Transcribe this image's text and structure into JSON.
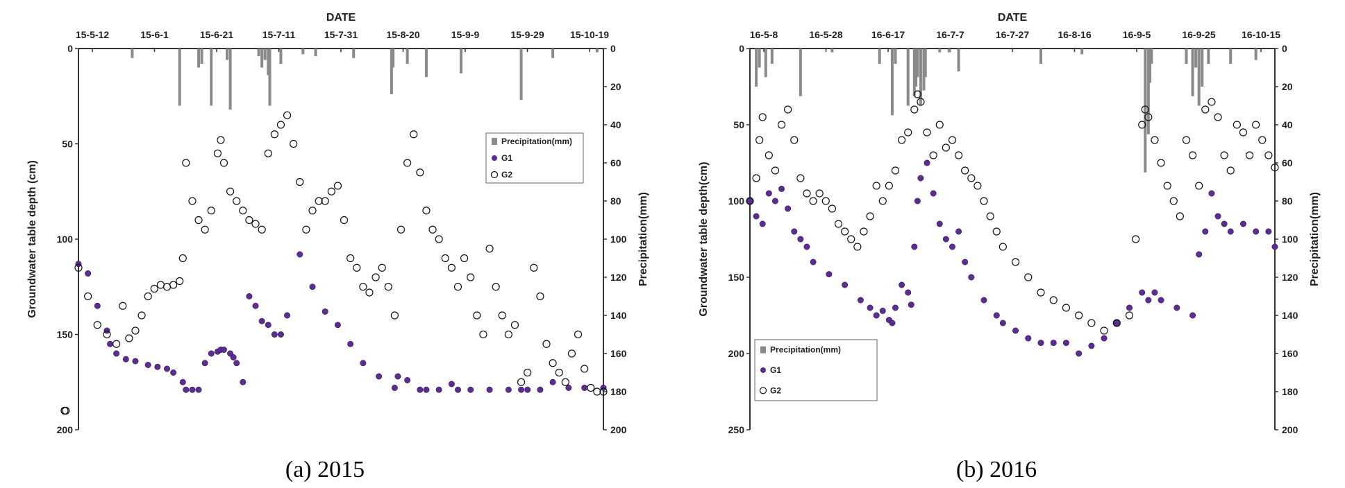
{
  "chart_data": [
    {
      "type": "scatter",
      "caption": "(a) 2015",
      "top_axis_label": "DATE",
      "x_tick_labels": [
        "15-5-12",
        "15-6-1",
        "15-6-21",
        "15-7-11",
        "15-7-31",
        "15-8-20",
        "15-9-9",
        "15-9-29",
        "15-10-19"
      ],
      "ylabel": "Groundwater table depth (cm)",
      "y2label": "Precipitation(mm)",
      "ylim": [
        0,
        200
      ],
      "y_ticks": [
        "0",
        "50",
        "100",
        "150",
        "200"
      ],
      "y2lim": [
        0,
        200
      ],
      "y2_ticks": [
        "0",
        "20",
        "40",
        "60",
        "80",
        "100",
        "120",
        "140",
        "160",
        "180",
        "200"
      ],
      "x_range_days": [
        0,
        166
      ],
      "legend_position": "right-center",
      "legend": [
        "Precipitation(mm)",
        "G1",
        "G2"
      ],
      "colors": {
        "precipitation": "#8a8a8a",
        "G1": "#5b2d8e",
        "G2": "#111111"
      },
      "series": [
        {
          "name": "Precipitation(mm)",
          "kind": "bar",
          "x": [
            17,
            32,
            38,
            39,
            42,
            47,
            48,
            57,
            58,
            59,
            60,
            60.5,
            64,
            71,
            75,
            87,
            99,
            99.5,
            104,
            110,
            121,
            140,
            150,
            164
          ],
          "y": [
            5,
            30,
            10,
            8,
            30,
            6,
            32,
            4,
            10,
            6,
            14,
            30,
            8,
            3,
            4,
            5,
            24,
            10,
            8,
            15,
            13,
            27,
            5,
            2
          ]
        },
        {
          "name": "G1",
          "kind": "scatter",
          "x": [
            0,
            3,
            6,
            9,
            10,
            12,
            15,
            18,
            22,
            25,
            28,
            30,
            33,
            34,
            36,
            38,
            40,
            42,
            44,
            45,
            46,
            48,
            49,
            50,
            52,
            54,
            56,
            58,
            60,
            62,
            64,
            66,
            70,
            74,
            78,
            82,
            86,
            90,
            95,
            100,
            101,
            104,
            108,
            110,
            114,
            118,
            120,
            124,
            130,
            136,
            140,
            142,
            146,
            150,
            155,
            160,
            166
          ],
          "y": [
            113,
            118,
            135,
            148,
            155,
            160,
            163,
            164,
            166,
            167,
            168,
            170,
            175,
            179,
            179,
            179,
            165,
            160,
            159,
            158,
            158,
            160,
            162,
            165,
            175,
            130,
            135,
            143,
            145,
            150,
            150,
            140,
            108,
            125,
            138,
            145,
            155,
            165,
            172,
            178,
            172,
            174,
            179,
            179,
            179,
            176,
            179,
            179,
            179,
            179,
            179,
            179,
            179,
            175,
            178,
            178,
            178
          ]
        },
        {
          "name": "G2",
          "kind": "scatter",
          "x": [
            -8,
            -6,
            -4,
            0,
            3,
            6,
            9,
            12,
            14,
            16,
            18,
            20,
            22,
            24,
            26,
            28,
            30,
            32,
            33,
            34,
            36,
            38,
            40,
            42,
            44,
            45,
            46,
            48,
            50,
            52,
            54,
            56,
            58,
            60,
            62,
            64,
            66,
            68,
            70,
            72,
            74,
            76,
            78,
            80,
            82,
            84,
            86,
            88,
            90,
            92,
            94,
            96,
            98,
            100,
            102,
            104,
            106,
            108,
            110,
            112,
            114,
            116,
            118,
            120,
            122,
            124,
            126,
            128,
            130,
            132,
            134,
            136,
            138,
            140,
            142,
            144,
            146,
            148,
            150,
            152,
            154,
            156,
            158,
            160,
            162,
            164,
            166
          ],
          "y": [
            190,
            190,
            190,
            115,
            130,
            145,
            150,
            155,
            135,
            152,
            148,
            140,
            130,
            126,
            124,
            125,
            124,
            122,
            110,
            60,
            80,
            90,
            95,
            85,
            55,
            48,
            60,
            75,
            80,
            85,
            90,
            92,
            95,
            55,
            45,
            40,
            35,
            50,
            70,
            95,
            85,
            80,
            80,
            75,
            72,
            90,
            110,
            115,
            125,
            128,
            120,
            115,
            125,
            140,
            95,
            60,
            45,
            65,
            85,
            95,
            100,
            110,
            115,
            125,
            110,
            120,
            140,
            150,
            105,
            125,
            140,
            150,
            145,
            175,
            170,
            115,
            130,
            155,
            165,
            170,
            175,
            160,
            150,
            168,
            178,
            180,
            180
          ]
        }
      ]
    },
    {
      "type": "scatter",
      "caption": "(b) 2016",
      "top_axis_label": "DATE",
      "x_tick_labels": [
        "16-5-8",
        "16-5-28",
        "16-6-17",
        "16-7-7",
        "16-7-27",
        "16-8-16",
        "16-9-5",
        "16-9-25",
        "16-10-15"
      ],
      "ylabel": "Groundwater table depth(cm)",
      "y2label": "Precipitation(mm)",
      "ylim": [
        0,
        250
      ],
      "y_ticks": [
        "0",
        "50",
        "100",
        "150",
        "200",
        "250"
      ],
      "y2lim": [
        0,
        200
      ],
      "y2_ticks": [
        "0",
        "20",
        "40",
        "60",
        "80",
        "100",
        "120",
        "140",
        "160",
        "180",
        "200"
      ],
      "x_range_days": [
        0,
        166
      ],
      "legend_position": "bottom-left",
      "legend": [
        "Precipitation(mm)",
        "G1",
        "G2"
      ],
      "colors": {
        "precipitation": "#8a8a8a",
        "G1": "#5b2d8e",
        "G2": "#111111"
      },
      "series": [
        {
          "name": "Precipitation(mm)",
          "kind": "bar",
          "x": [
            2,
            3,
            5,
            7,
            16,
            26,
            41,
            45,
            46,
            50,
            52,
            52.5,
            53,
            54,
            55,
            55.5,
            60,
            63,
            66,
            92,
            105,
            125,
            126,
            126.5,
            127,
            138,
            140,
            141,
            142,
            143,
            145,
            152,
            160
          ],
          "y": [
            20,
            10,
            15,
            8,
            25,
            2,
            8,
            35,
            8,
            30,
            25,
            20,
            15,
            30,
            22,
            15,
            2,
            2,
            12,
            8,
            3,
            65,
            45,
            18,
            8,
            8,
            25,
            10,
            30,
            20,
            8,
            8,
            6
          ]
        },
        {
          "name": "G1",
          "kind": "scatter",
          "x": [
            0,
            2,
            4,
            6,
            8,
            10,
            12,
            14,
            16,
            18,
            20,
            25,
            30,
            35,
            38,
            40,
            42,
            44,
            45,
            46,
            48,
            50,
            51,
            52,
            53,
            54,
            56,
            58,
            60,
            62,
            64,
            66,
            68,
            70,
            74,
            78,
            80,
            84,
            88,
            92,
            96,
            100,
            104,
            108,
            112,
            116,
            120,
            124,
            126,
            128,
            130,
            135,
            140,
            142,
            144,
            146,
            148,
            150,
            152,
            156,
            160,
            164,
            166
          ],
          "y": [
            100,
            110,
            115,
            95,
            100,
            92,
            105,
            120,
            125,
            130,
            140,
            148,
            155,
            165,
            170,
            175,
            172,
            178,
            180,
            170,
            155,
            160,
            168,
            130,
            100,
            85,
            75,
            95,
            115,
            125,
            130,
            120,
            140,
            150,
            165,
            175,
            180,
            185,
            190,
            193,
            193,
            193,
            200,
            195,
            190,
            180,
            170,
            160,
            165,
            160,
            165,
            170,
            175,
            135,
            120,
            95,
            110,
            115,
            120,
            115,
            120,
            120,
            130
          ]
        },
        {
          "name": "G2",
          "kind": "scatter",
          "x": [
            0,
            2,
            3,
            4,
            6,
            8,
            10,
            12,
            14,
            16,
            18,
            20,
            22,
            24,
            26,
            28,
            30,
            32,
            34,
            36,
            38,
            40,
            42,
            44,
            46,
            48,
            50,
            52,
            53,
            54,
            56,
            58,
            60,
            62,
            64,
            66,
            68,
            70,
            72,
            74,
            76,
            78,
            80,
            84,
            88,
            92,
            96,
            100,
            104,
            108,
            112,
            116,
            120,
            122,
            124,
            125,
            126,
            128,
            130,
            132,
            134,
            136,
            138,
            140,
            142,
            144,
            146,
            148,
            150,
            152,
            154,
            156,
            158,
            160,
            162,
            164,
            166
          ],
          "y": [
            100,
            85,
            60,
            45,
            70,
            80,
            50,
            40,
            60,
            85,
            95,
            100,
            95,
            100,
            105,
            115,
            120,
            125,
            130,
            120,
            110,
            90,
            100,
            90,
            80,
            60,
            55,
            40,
            30,
            35,
            55,
            70,
            50,
            65,
            60,
            70,
            80,
            85,
            90,
            100,
            110,
            120,
            130,
            140,
            150,
            160,
            165,
            170,
            175,
            180,
            185,
            180,
            175,
            125,
            50,
            40,
            45,
            60,
            75,
            90,
            100,
            110,
            60,
            70,
            90,
            40,
            35,
            45,
            70,
            80,
            50,
            55,
            70,
            50,
            60,
            70,
            78
          ]
        }
      ]
    }
  ]
}
